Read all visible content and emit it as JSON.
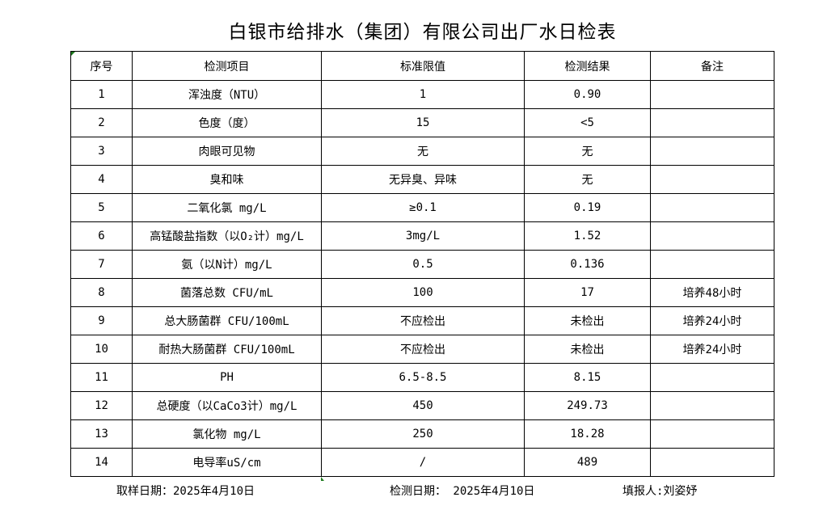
{
  "title": "白银市给排水（集团）有限公司出厂水日检表",
  "columns": [
    "序号",
    "检测项目",
    "标准限值",
    "检测结果",
    "备注"
  ],
  "rows": [
    [
      "1",
      "浑浊度（NTU）",
      "1",
      "0.90",
      ""
    ],
    [
      "2",
      "色度（度）",
      "15",
      "<5",
      ""
    ],
    [
      "3",
      "肉眼可见物",
      "无",
      "无",
      ""
    ],
    [
      "4",
      "臭和味",
      "无异臭、异味",
      "无",
      ""
    ],
    [
      "5",
      "二氧化氯 mg/L",
      "≥0.1",
      "0.19",
      ""
    ],
    [
      "6",
      "高锰酸盐指数（以O₂计）mg/L",
      "3mg/L",
      "1.52",
      ""
    ],
    [
      "7",
      "氨（以N计）mg/L",
      "0.5",
      "0.136",
      ""
    ],
    [
      "8",
      "菌落总数 CFU/mL",
      "100",
      "17",
      "培养48小时"
    ],
    [
      "9",
      "总大肠菌群 CFU/100mL",
      "不应检出",
      "未检出",
      "培养24小时"
    ],
    [
      "10",
      "耐热大肠菌群 CFU/100mL",
      "不应检出",
      "未检出",
      "培养24小时"
    ],
    [
      "11",
      "PH",
      "6.5-8.5",
      "8.15",
      ""
    ],
    [
      "12",
      "总硬度（以CaCo3计）mg/L",
      "450",
      "249.73",
      ""
    ],
    [
      "13",
      "氯化物 mg/L",
      "250",
      "18.28",
      ""
    ],
    [
      "14",
      "电导率uS/cm",
      "/",
      "489",
      ""
    ]
  ],
  "footer": {
    "sampling_date": "取样日期：2025年4月10日",
    "test_date": "检测日期： 2025年4月10日",
    "reporter": "填报人:刘姿妤"
  },
  "colors": {
    "cell_marker": "#1e7b1e",
    "border": "#000000"
  }
}
